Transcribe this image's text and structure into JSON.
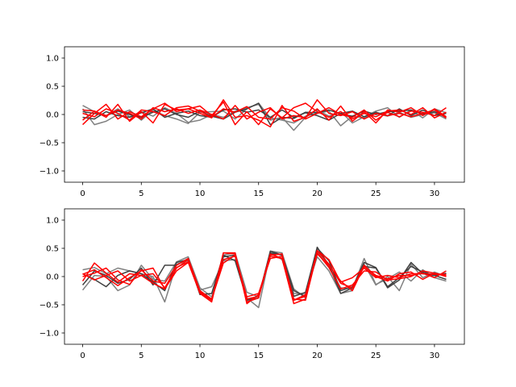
{
  "chart_data": [
    {
      "type": "line",
      "xlim": [
        -1.55,
        32.55
      ],
      "ylim": [
        -1.2,
        1.2
      ],
      "xticks": [
        0,
        5,
        10,
        15,
        20,
        25,
        30
      ],
      "yticks": [
        1.0,
        0.5,
        0.0,
        -0.5,
        -1.0
      ],
      "xtick_labels": [
        "0",
        "5",
        "10",
        "15",
        "20",
        "25",
        "30"
      ],
      "ytick_labels": [
        "1.0",
        "0.5",
        "0.0",
        "−0.5",
        "−1.0"
      ],
      "x": [
        0,
        1,
        2,
        3,
        4,
        5,
        6,
        7,
        8,
        9,
        10,
        11,
        12,
        13,
        14,
        15,
        16,
        17,
        18,
        19,
        20,
        21,
        22,
        23,
        24,
        25,
        26,
        27,
        28,
        29,
        30,
        31
      ],
      "series": [
        {
          "color": "#808080",
          "values": [
            0.16,
            0.05,
            -0.02,
            0.1,
            -0.04,
            0.05,
            -0.03,
            0.12,
            0.02,
            -0.14,
            -0.1,
            0.0,
            -0.05,
            0.06,
            0.12,
            0.18,
            -0.1,
            -0.05,
            -0.28,
            -0.05,
            0.08,
            -0.03,
            0.05,
            -0.15,
            -0.04,
            0.06,
            0.12,
            -0.05,
            0.08,
            -0.06,
            0.1,
            0.03
          ]
        },
        {
          "color": "#808080",
          "values": [
            0.1,
            -0.18,
            -0.12,
            0.0,
            0.08,
            -0.1,
            0.08,
            -0.02,
            -0.08,
            -0.16,
            0.04,
            0.05,
            0.06,
            -0.08,
            0.1,
            0.2,
            -0.06,
            -0.1,
            -0.15,
            -0.03,
            0.02,
            0.06,
            -0.2,
            -0.03,
            -0.06,
            0.02,
            -0.03,
            0.04,
            -0.05,
            0.0,
            0.03,
            -0.08
          ]
        },
        {
          "color": "#404040",
          "values": [
            0.05,
            0.02,
            -0.02,
            0.06,
            0.0,
            -0.05,
            0.04,
            0.1,
            0.0,
            -0.05,
            0.06,
            -0.03,
            -0.08,
            0.04,
            0.1,
            0.2,
            -0.18,
            -0.05,
            -0.07,
            0.04,
            0.03,
            0.08,
            0.01,
            -0.03,
            0.06,
            0.0,
            0.05,
            0.06,
            0.08,
            0.01,
            0.05,
            -0.05
          ]
        },
        {
          "color": "#404040",
          "values": [
            -0.05,
            -0.08,
            0.05,
            -0.02,
            -0.05,
            0.03,
            0.1,
            -0.05,
            0.02,
            0.06,
            -0.02,
            -0.05,
            0.08,
            0.1,
            0.04,
            0.08,
            -0.05,
            0.08,
            -0.05,
            0.03,
            -0.02,
            -0.1,
            0.02,
            0.06,
            -0.04,
            0.04,
            -0.02,
            0.1,
            -0.02,
            0.08,
            -0.02,
            0.02
          ]
        },
        {
          "color": "#ff0000",
          "values": [
            -0.18,
            0.02,
            0.18,
            -0.08,
            0.05,
            -0.04,
            0.1,
            0.2,
            0.05,
            0.1,
            0.15,
            -0.02,
            0.22,
            -0.18,
            0.05,
            -0.18,
            0.1,
            -0.06,
            0.12,
            0.2,
            0.05,
            -0.05,
            0.05,
            -0.08,
            0.02,
            -0.04,
            0.06,
            0.08,
            0.0,
            0.12,
            -0.06,
            0.04
          ]
        },
        {
          "color": "#ff0000",
          "values": [
            0.08,
            0.06,
            -0.05,
            0.18,
            -0.12,
            0.05,
            -0.15,
            0.18,
            0.08,
            0.1,
            0.02,
            -0.06,
            0.26,
            -0.05,
            -0.02,
            -0.1,
            -0.22,
            0.16,
            -0.12,
            -0.05,
            0.1,
            -0.1,
            0.15,
            -0.12,
            0.05,
            -0.15,
            0.08,
            0.04,
            0.12,
            -0.02,
            0.1,
            -0.04
          ]
        },
        {
          "color": "#ff0000",
          "values": [
            -0.1,
            0.06,
            -0.02,
            0.08,
            0.02,
            -0.08,
            0.12,
            0.05,
            0.1,
            0.02,
            0.08,
            0.0,
            -0.08,
            0.16,
            -0.08,
            0.04,
            0.12,
            -0.08,
            -0.02,
            -0.06,
            0.26,
            0.02,
            -0.02,
            0.05,
            -0.08,
            0.02,
            -0.02,
            0.02,
            -0.04,
            0.02,
            0.08,
            -0.06
          ]
        },
        {
          "color": "#ff0000",
          "values": [
            0.02,
            -0.04,
            0.1,
            0.02,
            -0.1,
            0.08,
            0.05,
            -0.02,
            0.12,
            0.15,
            0.06,
            -0.05,
            0.1,
            0.04,
            0.14,
            -0.05,
            -0.08,
            0.12,
            0.06,
            -0.08,
            0.02,
            0.12,
            0.0,
            -0.05,
            0.08,
            -0.1,
            0.04,
            -0.04,
            0.06,
            0.04,
            -0.02,
            0.12
          ]
        }
      ]
    },
    {
      "type": "line",
      "xlim": [
        -1.55,
        32.55
      ],
      "ylim": [
        -1.2,
        1.2
      ],
      "xticks": [
        0,
        5,
        10,
        15,
        20,
        25,
        30
      ],
      "yticks": [
        1.0,
        0.5,
        0.0,
        -0.5,
        -1.0
      ],
      "xtick_labels": [
        "0",
        "5",
        "10",
        "15",
        "20",
        "25",
        "30"
      ],
      "ytick_labels": [
        "1.0",
        "0.5",
        "0.0",
        "−0.5",
        "−1.0"
      ],
      "x": [
        0,
        1,
        2,
        3,
        4,
        5,
        6,
        7,
        8,
        9,
        10,
        11,
        12,
        13,
        14,
        15,
        16,
        17,
        18,
        19,
        20,
        21,
        22,
        23,
        24,
        25,
        26,
        27,
        28,
        29,
        30,
        31
      ],
      "series": [
        {
          "color": "#808080",
          "values": [
            0.12,
            0.16,
            0.05,
            0.15,
            0.1,
            0.05,
            0.0,
            -0.45,
            0.22,
            0.28,
            -0.24,
            -0.18,
            0.28,
            0.3,
            -0.38,
            -0.55,
            0.42,
            0.3,
            -0.3,
            -0.3,
            0.35,
            0.1,
            -0.3,
            -0.25,
            0.22,
            -0.15,
            0.0,
            -0.25,
            0.22,
            -0.02,
            0.08,
            0.0
          ]
        },
        {
          "color": "#808080",
          "values": [
            -0.24,
            0.02,
            0.0,
            -0.25,
            -0.15,
            0.2,
            -0.05,
            -0.08,
            0.26,
            0.35,
            -0.2,
            -0.36,
            0.38,
            0.42,
            -0.28,
            -0.36,
            0.45,
            0.42,
            -0.22,
            -0.38,
            0.45,
            0.18,
            -0.2,
            -0.22,
            0.32,
            -0.14,
            -0.04,
            0.08,
            -0.08,
            0.12,
            -0.02,
            -0.08
          ]
        },
        {
          "color": "#404040",
          "values": [
            0.05,
            -0.05,
            -0.18,
            0.02,
            0.1,
            0.05,
            -0.1,
            -0.25,
            0.25,
            0.3,
            -0.32,
            -0.3,
            0.38,
            0.28,
            -0.4,
            -0.35,
            0.42,
            0.38,
            -0.25,
            -0.35,
            0.5,
            0.28,
            -0.25,
            -0.18,
            0.18,
            0.15,
            -0.2,
            -0.06,
            0.25,
            0.05,
            0.02,
            -0.05
          ]
        },
        {
          "color": "#404040",
          "values": [
            -0.15,
            0.1,
            0.02,
            -0.12,
            -0.05,
            0.15,
            -0.15,
            0.2,
            0.2,
            0.32,
            -0.28,
            -0.42,
            0.35,
            0.38,
            -0.42,
            -0.38,
            0.45,
            0.38,
            -0.35,
            -0.28,
            0.52,
            0.2,
            -0.3,
            -0.2,
            0.25,
            0.16,
            -0.18,
            -0.02,
            0.18,
            0.08,
            0.02,
            0.06
          ]
        },
        {
          "color": "#ff0000",
          "values": [
            0.04,
            0.12,
            -0.02,
            -0.16,
            -0.02,
            0.1,
            0.15,
            -0.22,
            0.15,
            0.3,
            -0.28,
            -0.42,
            0.42,
            0.4,
            -0.45,
            -0.38,
            0.38,
            0.4,
            -0.42,
            -0.35,
            0.46,
            0.3,
            -0.1,
            -0.02,
            0.15,
            -0.02,
            0.02,
            -0.02,
            0.05,
            0.05,
            0.04,
            0.04
          ]
        },
        {
          "color": "#ff0000",
          "values": [
            -0.08,
            0.24,
            0.06,
            -0.1,
            0.05,
            0.02,
            -0.12,
            -0.22,
            0.1,
            0.25,
            -0.3,
            -0.45,
            0.42,
            0.42,
            -0.48,
            -0.32,
            0.36,
            0.32,
            -0.48,
            -0.4,
            0.46,
            0.22,
            -0.12,
            -0.2,
            0.2,
            0.0,
            -0.08,
            0.05,
            0.08,
            -0.05,
            0.06,
            0.02
          ]
        },
        {
          "color": "#ff0000",
          "values": [
            0.0,
            0.06,
            0.15,
            -0.06,
            -0.14,
            0.12,
            -0.08,
            -0.12,
            0.2,
            0.32,
            -0.25,
            -0.4,
            0.3,
            0.36,
            -0.4,
            -0.35,
            0.4,
            0.32,
            -0.42,
            -0.32,
            0.4,
            0.2,
            -0.08,
            -0.25,
            0.18,
            0.02,
            -0.04,
            0.02,
            0.02,
            0.06,
            -0.02,
            0.1
          ]
        },
        {
          "color": "#ff0000",
          "values": [
            0.05,
            -0.06,
            0.02,
            0.1,
            -0.08,
            0.02,
            0.05,
            -0.2,
            0.16,
            0.26,
            -0.26,
            -0.4,
            0.24,
            0.38,
            -0.36,
            -0.3,
            0.32,
            0.36,
            -0.4,
            -0.42,
            0.42,
            0.16,
            -0.22,
            -0.15,
            0.1,
            0.08,
            -0.06,
            -0.04,
            0.0,
            0.1,
            0.06,
            0.0
          ]
        }
      ]
    }
  ]
}
